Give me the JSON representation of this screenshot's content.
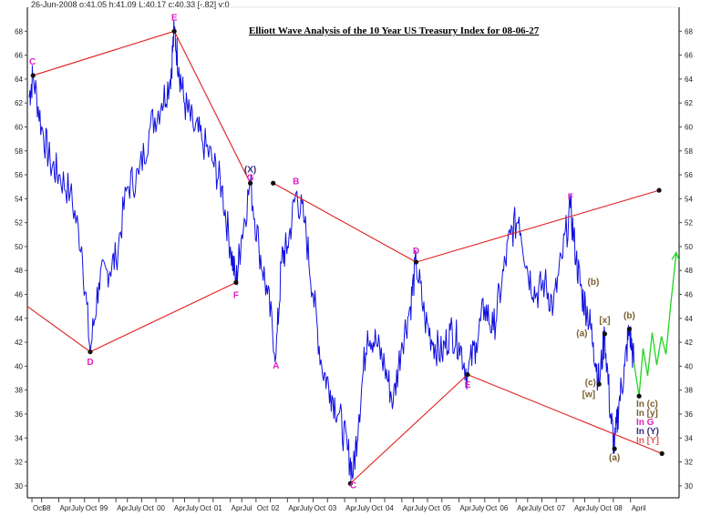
{
  "header": {
    "info": "26-Jun-2008 o:41.05 h:41.09 L:40.17 c:40.33 [-.82] v:0"
  },
  "chart_data": {
    "type": "line",
    "title": "Elliott Wave Analysis of the 10 Year US Treasury Index for 08-06-27",
    "ylim": [
      29,
      70
    ],
    "xlim": [
      1997.25,
      2008.65
    ],
    "y_ticks": [
      30,
      32,
      34,
      36,
      38,
      40,
      42,
      44,
      46,
      48,
      50,
      52,
      54,
      56,
      58,
      60,
      62,
      64,
      66,
      68
    ],
    "x_tick_labels": [
      {
        "x": 1997.33,
        "label": "Oct"
      },
      {
        "x": 1997.5,
        "label": "98"
      },
      {
        "x": 1997.8,
        "label": "Apr"
      },
      {
        "x": 1998.0,
        "label": "July"
      },
      {
        "x": 1998.25,
        "label": "Oct"
      },
      {
        "x": 1998.5,
        "label": "99"
      },
      {
        "x": 1998.8,
        "label": "Apr"
      },
      {
        "x": 1999.0,
        "label": "July"
      },
      {
        "x": 1999.25,
        "label": "Oct"
      },
      {
        "x": 1999.5,
        "label": "00"
      },
      {
        "x": 1999.8,
        "label": "Apr"
      },
      {
        "x": 2000.0,
        "label": "July"
      },
      {
        "x": 2000.25,
        "label": "Oct"
      },
      {
        "x": 2000.5,
        "label": "01"
      },
      {
        "x": 2000.8,
        "label": "Apr"
      },
      {
        "x": 2001.0,
        "label": "Jul"
      },
      {
        "x": 2001.25,
        "label": "Oct"
      },
      {
        "x": 2001.5,
        "label": "02"
      },
      {
        "x": 2001.8,
        "label": "Apr"
      },
      {
        "x": 2002.0,
        "label": "July"
      },
      {
        "x": 2002.25,
        "label": "Oct"
      },
      {
        "x": 2002.5,
        "label": "03"
      },
      {
        "x": 2002.8,
        "label": "Apr"
      },
      {
        "x": 2003.0,
        "label": "July"
      },
      {
        "x": 2003.25,
        "label": "Oct"
      },
      {
        "x": 2003.5,
        "label": "04"
      },
      {
        "x": 2003.8,
        "label": "Apr"
      },
      {
        "x": 2004.0,
        "label": "July"
      },
      {
        "x": 2004.25,
        "label": "Oct"
      },
      {
        "x": 2004.5,
        "label": "05"
      },
      {
        "x": 2004.8,
        "label": "Apr"
      },
      {
        "x": 2005.0,
        "label": "July"
      },
      {
        "x": 2005.25,
        "label": "Oct"
      },
      {
        "x": 2005.5,
        "label": "06"
      },
      {
        "x": 2005.8,
        "label": "Apr"
      },
      {
        "x": 2006.0,
        "label": "July"
      },
      {
        "x": 2006.25,
        "label": "Oct"
      },
      {
        "x": 2006.5,
        "label": "07"
      },
      {
        "x": 2006.8,
        "label": "Apr"
      },
      {
        "x": 2007.0,
        "label": "July"
      },
      {
        "x": 2007.25,
        "label": "Oct"
      },
      {
        "x": 2007.5,
        "label": "08"
      },
      {
        "x": 2007.8,
        "label": "April"
      }
    ],
    "price_series": {
      "name": "",
      "color": "#1010e0",
      "points": [
        [
          1997.28,
          62.5
        ],
        [
          1997.35,
          64.3
        ],
        [
          1997.5,
          60.0
        ],
        [
          1997.65,
          57.0
        ],
        [
          1997.8,
          56.0
        ],
        [
          1998.0,
          54.5
        ],
        [
          1998.2,
          50.0
        ],
        [
          1998.35,
          41.2
        ],
        [
          1998.5,
          47.0
        ],
        [
          1998.65,
          48.0
        ],
        [
          1998.8,
          49.0
        ],
        [
          1999.0,
          55.0
        ],
        [
          1999.2,
          56.0
        ],
        [
          1999.4,
          60.0
        ],
        [
          1999.6,
          62.0
        ],
        [
          1999.75,
          64.0
        ],
        [
          1999.82,
          68.0
        ],
        [
          1999.9,
          65.0
        ],
        [
          2000.0,
          62.0
        ],
        [
          2000.15,
          60.0
        ],
        [
          2000.3,
          59.0
        ],
        [
          2000.5,
          57.0
        ],
        [
          2000.65,
          55.0
        ],
        [
          2000.8,
          50.0
        ],
        [
          2000.9,
          47.0
        ],
        [
          2001.0,
          51.0
        ],
        [
          2001.15,
          55.3
        ],
        [
          2001.3,
          50.0
        ],
        [
          2001.45,
          46.0
        ],
        [
          2001.6,
          41.0
        ],
        [
          2001.7,
          49.0
        ],
        [
          2001.8,
          50.0
        ],
        [
          2001.95,
          54.5
        ],
        [
          2002.1,
          52.0
        ],
        [
          2002.25,
          46.0
        ],
        [
          2002.4,
          40.0
        ],
        [
          2002.55,
          38.0
        ],
        [
          2002.7,
          36.0
        ],
        [
          2002.85,
          33.0
        ],
        [
          2002.95,
          31.0
        ],
        [
          2003.05,
          36.0
        ],
        [
          2003.2,
          43.0
        ],
        [
          2003.35,
          42.0
        ],
        [
          2003.5,
          40.0
        ],
        [
          2003.65,
          37.0
        ],
        [
          2003.8,
          42.0
        ],
        [
          2003.95,
          45.0
        ],
        [
          2004.05,
          48.7
        ],
        [
          2004.2,
          44.0
        ],
        [
          2004.35,
          42.0
        ],
        [
          2004.5,
          41.0
        ],
        [
          2004.65,
          43.0
        ],
        [
          2004.8,
          42.0
        ],
        [
          2004.95,
          39.3
        ],
        [
          2005.1,
          42.0
        ],
        [
          2005.25,
          45.0
        ],
        [
          2005.4,
          43.0
        ],
        [
          2005.55,
          47.0
        ],
        [
          2005.7,
          51.0
        ],
        [
          2005.85,
          52.5
        ],
        [
          2006.0,
          48.0
        ],
        [
          2006.15,
          46.0
        ],
        [
          2006.3,
          47.0
        ],
        [
          2006.45,
          45.0
        ],
        [
          2006.6,
          49.0
        ],
        [
          2006.75,
          53.2
        ],
        [
          2006.85,
          49.0
        ],
        [
          2006.95,
          46.0
        ],
        [
          2007.05,
          44.5
        ],
        [
          2007.15,
          42.0
        ],
        [
          2007.25,
          38.5
        ],
        [
          2007.35,
          42.7
        ],
        [
          2007.45,
          36.0
        ],
        [
          2007.52,
          33.1
        ],
        [
          2007.6,
          37.0
        ],
        [
          2007.7,
          40.0
        ],
        [
          2007.78,
          43.1
        ],
        [
          2007.86,
          40.3
        ]
      ]
    },
    "projection_series": {
      "name": "",
      "color": "#22d422",
      "points": [
        [
          2007.86,
          40.3
        ],
        [
          2007.95,
          37.5
        ],
        [
          2008.02,
          41.5
        ],
        [
          2008.1,
          39.2
        ],
        [
          2008.18,
          42.8
        ],
        [
          2008.26,
          40.1
        ],
        [
          2008.34,
          42.5
        ],
        [
          2008.42,
          41.0
        ],
        [
          2008.5,
          45.0
        ],
        [
          2008.6,
          49.5
        ]
      ]
    },
    "trendlines": [
      {
        "from": [
          1997.35,
          64.3
        ],
        "to": [
          1999.82,
          68.0
        ]
      },
      {
        "from": [
          1999.82,
          68.0
        ],
        "to": [
          2001.15,
          55.3
        ]
      },
      {
        "from": [
          1998.35,
          41.2
        ],
        "to": [
          2000.9,
          47.0
        ]
      },
      {
        "from": [
          1997.25,
          45.0
        ],
        "to": [
          1998.35,
          41.2
        ]
      },
      {
        "from": [
          2001.55,
          55.3
        ],
        "to": [
          2004.05,
          48.7
        ]
      },
      {
        "from": [
          2004.05,
          48.7
        ],
        "to": [
          2008.3,
          54.7
        ]
      },
      {
        "from": [
          2002.9,
          30.2
        ],
        "to": [
          2004.95,
          39.3
        ]
      },
      {
        "from": [
          2004.95,
          39.3
        ],
        "to": [
          2008.35,
          32.7
        ]
      }
    ],
    "wave_labels": [
      {
        "text": "C",
        "x": 1997.34,
        "y": 65.2,
        "color": "#e020c0"
      },
      {
        "text": "E",
        "x": 1999.82,
        "y": 68.9,
        "color": "#e020c0"
      },
      {
        "text": "(X)",
        "x": 2001.15,
        "y": 56.2,
        "color": "#3a2a7a"
      },
      {
        "text": "G",
        "x": 2001.15,
        "y": 55.5,
        "color": "#e020c0"
      },
      {
        "text": "F",
        "x": 2000.9,
        "y": 45.7,
        "color": "#e020c0"
      },
      {
        "text": "D",
        "x": 1998.35,
        "y": 40.1,
        "color": "#e020c0"
      },
      {
        "text": "A",
        "x": 2001.6,
        "y": 39.8,
        "color": "#e020c0"
      },
      {
        "text": "B",
        "x": 2001.95,
        "y": 55.2,
        "color": "#e020c0"
      },
      {
        "text": "C",
        "x": 2002.95,
        "y": 29.8,
        "color": "#e020c0"
      },
      {
        "text": "D",
        "x": 2004.05,
        "y": 49.4,
        "color": "#e020c0"
      },
      {
        "text": "E",
        "x": 2004.95,
        "y": 38.2,
        "color": "#e020c0"
      },
      {
        "text": "F",
        "x": 2006.75,
        "y": 53.9,
        "color": "#e020c0"
      },
      {
        "text": "(b)",
        "x": 2007.15,
        "y": 46.8,
        "color": "#7a6030"
      },
      {
        "text": "(a)",
        "x": 2006.95,
        "y": 42.5,
        "color": "#7a6030"
      },
      {
        "text": "[x]",
        "x": 2007.35,
        "y": 43.6,
        "color": "#7a6030"
      },
      {
        "text": "(b)",
        "x": 2007.78,
        "y": 44.0,
        "color": "#7a6030"
      },
      {
        "text": "(c)",
        "x": 2007.1,
        "y": 38.4,
        "color": "#7a6030"
      },
      {
        "text": "[w]",
        "x": 2007.07,
        "y": 37.4,
        "color": "#7a6030"
      },
      {
        "text": "(a)",
        "x": 2007.52,
        "y": 32.1,
        "color": "#7a6030"
      }
    ],
    "legend": [
      {
        "prefix": "In",
        "suffix": "(c)",
        "prefix_color": "#7a6030",
        "suffix_color": "#7a6030"
      },
      {
        "prefix": "In",
        "suffix": "[y]",
        "prefix_color": "#7a6030",
        "suffix_color": "#7a6030"
      },
      {
        "prefix": "In",
        "suffix": "G",
        "prefix_color": "#e020c0",
        "suffix_color": "#e020c0"
      },
      {
        "prefix": "In",
        "suffix": "(Y)",
        "prefix_color": "#3a2a7a",
        "suffix_color": "#3a2a7a"
      },
      {
        "prefix": "In",
        "suffix": "[Y]",
        "prefix_color": "#e06060",
        "suffix_color": "#e06060"
      }
    ],
    "colors": {
      "trendline": "#e02020",
      "pivot": "#111111",
      "axis": "#000000",
      "grid_tick": "#444444"
    },
    "grid": false
  }
}
